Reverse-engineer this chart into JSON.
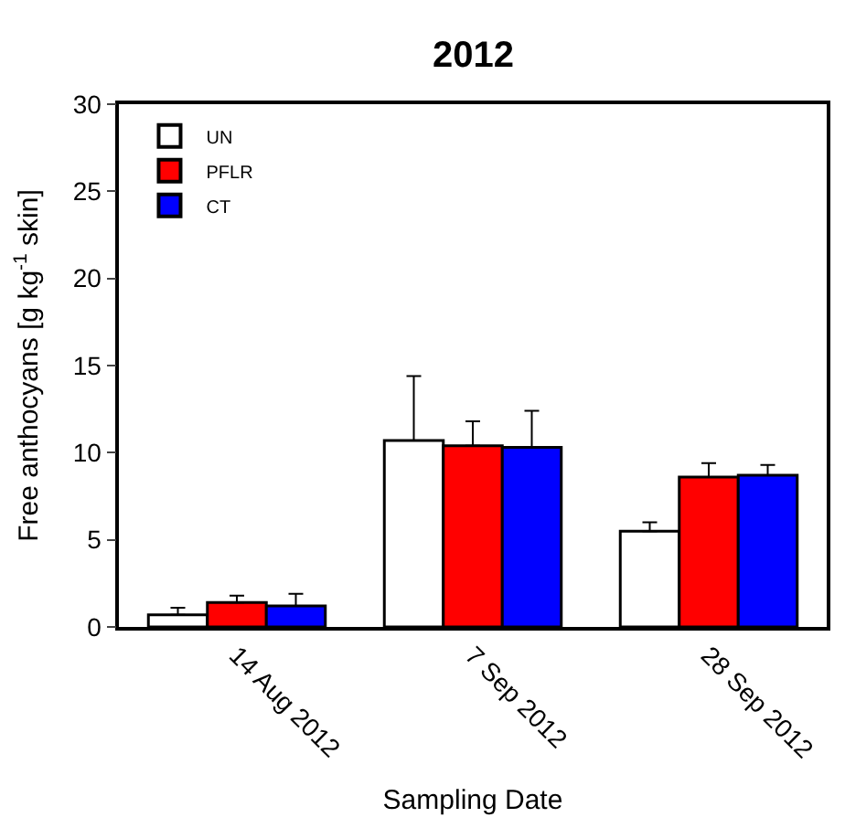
{
  "chart_data": {
    "type": "bar",
    "title": "2012",
    "xlabel": "Sampling Date",
    "ylabel": "Free anthocyans [g kg$^{-1}$ skin]",
    "categories": [
      "14 Aug 2012",
      "7 Sep 2012",
      "28 Sep 2012"
    ],
    "series": [
      {
        "name": "UN",
        "color": "#ffffff",
        "values": [
          0.7,
          10.7,
          5.5
        ],
        "errors": [
          [
            0.7,
            1.1
          ],
          [
            10.7,
            14.4
          ],
          [
            5.5,
            6.0
          ]
        ]
      },
      {
        "name": "PFLR",
        "color": "#ff0000",
        "values": [
          1.4,
          10.4,
          8.6
        ],
        "errors": [
          [
            1.4,
            1.8
          ],
          [
            10.4,
            11.8
          ],
          [
            8.6,
            9.4
          ]
        ]
      },
      {
        "name": "CT",
        "color": "#0000ff",
        "values": [
          1.2,
          10.3,
          8.7
        ],
        "errors": [
          [
            1.2,
            1.9
          ],
          [
            10.3,
            12.4
          ],
          [
            8.7,
            9.3
          ]
        ]
      }
    ],
    "ylim": [
      0,
      30
    ],
    "yticks": [
      0,
      5,
      10,
      15,
      20,
      25,
      30
    ],
    "legend": "top left"
  }
}
